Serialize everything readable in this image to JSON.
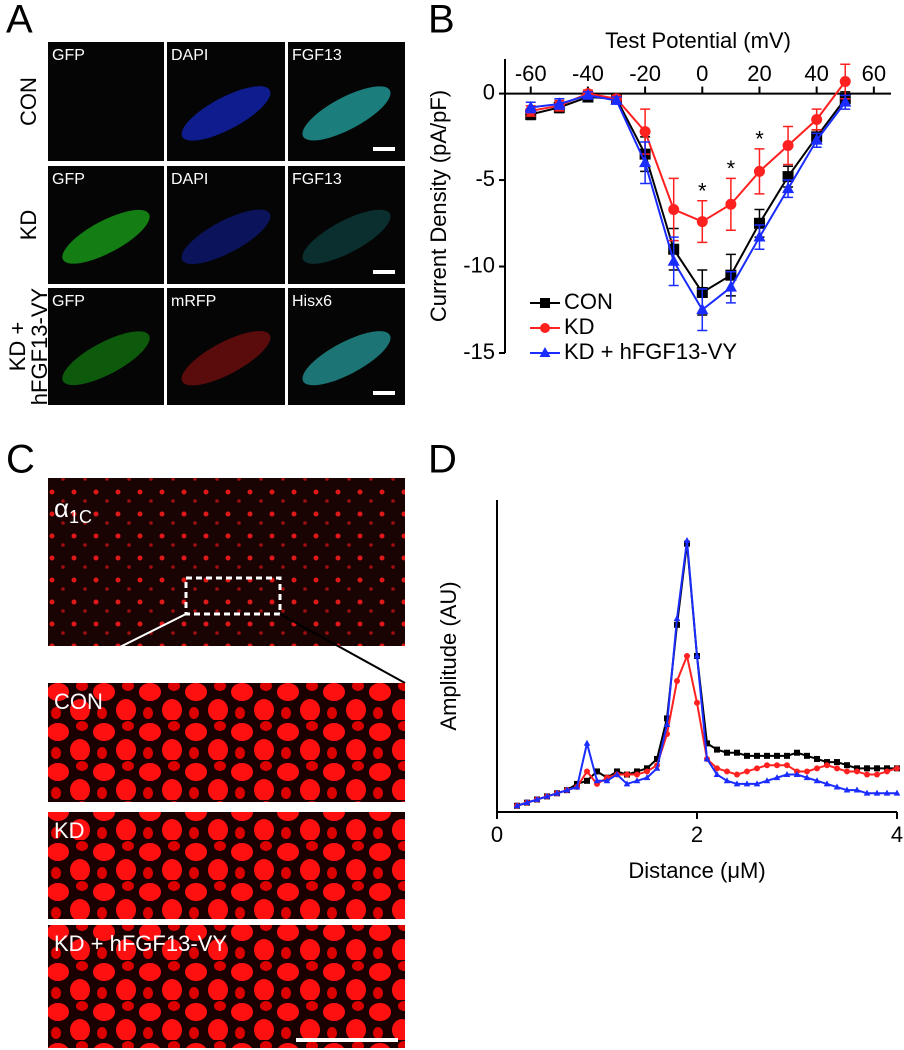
{
  "panel_labels": [
    "A",
    "B",
    "C",
    "D"
  ],
  "panel_a": {
    "rows": [
      {
        "label": [
          "CON"
        ],
        "channels": [
          "GFP",
          "DAPI",
          "FGF13"
        ]
      },
      {
        "label": [
          "KD"
        ],
        "channels": [
          "GFP",
          "DAPI",
          "FGF13"
        ]
      },
      {
        "label": [
          "KD +",
          "hFGF13-VY"
        ],
        "channels": [
          "GFP",
          "mRFP",
          "Hisx6"
        ]
      }
    ]
  },
  "panel_c": {
    "overview_label": {
      "symbol": "α",
      "subscript": "1C"
    },
    "zoom_labels": [
      "CON",
      "KD",
      "KD + hFGF13-VY"
    ]
  },
  "chart_data": [
    {
      "type": "line",
      "x_label": "Test Potential (mV)",
      "y_label": "Current Density (pA/pF)",
      "x": [
        -60,
        -50,
        -40,
        -30,
        -20,
        -10,
        0,
        10,
        20,
        30,
        40,
        50
      ],
      "series": [
        {
          "name": "CON",
          "color": "#000000",
          "marker": "square",
          "values": [
            -1.2,
            -0.8,
            -0.2,
            -0.3,
            -3.5,
            -9.0,
            -11.5,
            -10.5,
            -7.5,
            -4.8,
            -2.5,
            -0.3
          ],
          "errors": [
            0.3,
            0.3,
            0.2,
            0.2,
            1.0,
            1.2,
            1.3,
            1.2,
            0.8,
            0.6,
            0.4,
            0.4
          ]
        },
        {
          "name": "KD",
          "color": "#ff2020",
          "marker": "circle",
          "values": [
            -1.0,
            -0.7,
            0.0,
            -0.3,
            -2.2,
            -6.7,
            -7.4,
            -6.4,
            -4.5,
            -3.0,
            -1.5,
            0.7
          ],
          "errors": [
            0.3,
            0.3,
            0.2,
            0.2,
            1.3,
            1.8,
            1.2,
            1.5,
            1.3,
            1.1,
            0.6,
            1.0
          ]
        },
        {
          "name": "KD + hFGF13-VY",
          "color": "#1a2cff",
          "marker": "triangle",
          "values": [
            -0.8,
            -0.6,
            -0.1,
            -0.4,
            -4.0,
            -9.7,
            -12.5,
            -11.2,
            -8.3,
            -5.5,
            -2.7,
            -0.5
          ],
          "errors": [
            0.3,
            0.3,
            0.2,
            0.2,
            1.2,
            1.4,
            1.2,
            0.9,
            0.7,
            0.5,
            0.4,
            0.4
          ]
        }
      ],
      "xlim": [
        -69,
        66
      ],
      "ylim": [
        -15,
        2
      ],
      "xticks": [
        -60,
        -40,
        -20,
        0,
        20,
        40,
        60
      ],
      "yticks": [
        0,
        -5,
        -10,
        -15
      ],
      "legend": "lower left",
      "annotations": [
        {
          "x": 0,
          "text": "*"
        },
        {
          "x": 10,
          "text": "*"
        },
        {
          "x": 20,
          "text": "*"
        }
      ]
    },
    {
      "type": "line",
      "x_label": "Distance (μM)",
      "y_label": "Amplitude (AU)",
      "x": [
        0.2,
        0.3,
        0.4,
        0.5,
        0.6,
        0.7,
        0.8,
        0.9,
        1.0,
        1.1,
        1.2,
        1.3,
        1.4,
        1.5,
        1.6,
        1.7,
        1.8,
        1.9,
        2.0,
        2.1,
        2.2,
        2.3,
        2.4,
        2.5,
        2.6,
        2.7,
        2.8,
        2.9,
        3.0,
        3.1,
        3.2,
        3.3,
        3.4,
        3.5,
        3.6,
        3.7,
        3.8,
        3.9,
        4.0
      ],
      "series": [
        {
          "name": "CON",
          "color": "#000000",
          "marker": "square",
          "values": [
            0.02,
            0.03,
            0.04,
            0.05,
            0.06,
            0.07,
            0.09,
            0.1,
            0.13,
            0.11,
            0.13,
            0.12,
            0.13,
            0.14,
            0.17,
            0.3,
            0.6,
            0.86,
            0.5,
            0.22,
            0.2,
            0.19,
            0.19,
            0.18,
            0.18,
            0.18,
            0.18,
            0.18,
            0.19,
            0.18,
            0.17,
            0.16,
            0.16,
            0.15,
            0.14,
            0.14,
            0.14,
            0.14,
            0.14
          ]
        },
        {
          "name": "KD",
          "color": "#ff2020",
          "marker": "circle",
          "values": [
            0.02,
            0.03,
            0.04,
            0.05,
            0.06,
            0.07,
            0.08,
            0.13,
            0.09,
            0.11,
            0.12,
            0.12,
            0.12,
            0.13,
            0.15,
            0.25,
            0.42,
            0.5,
            0.35,
            0.17,
            0.14,
            0.13,
            0.12,
            0.13,
            0.14,
            0.15,
            0.15,
            0.15,
            0.13,
            0.13,
            0.14,
            0.15,
            0.14,
            0.13,
            0.13,
            0.12,
            0.12,
            0.13,
            0.14
          ]
        },
        {
          "name": "KD + hFGF13-VY",
          "color": "#1a2cff",
          "marker": "triangle",
          "values": [
            0.02,
            0.03,
            0.04,
            0.05,
            0.06,
            0.07,
            0.08,
            0.22,
            0.1,
            0.1,
            0.12,
            0.09,
            0.1,
            0.11,
            0.14,
            0.28,
            0.62,
            0.87,
            0.5,
            0.17,
            0.12,
            0.1,
            0.09,
            0.09,
            0.09,
            0.1,
            0.11,
            0.12,
            0.12,
            0.11,
            0.1,
            0.09,
            0.08,
            0.07,
            0.07,
            0.06,
            0.06,
            0.06,
            0.06
          ]
        }
      ],
      "xlim": [
        0,
        4
      ],
      "ylim": [
        0,
        1
      ],
      "xticks": [
        0,
        2,
        4
      ]
    }
  ]
}
